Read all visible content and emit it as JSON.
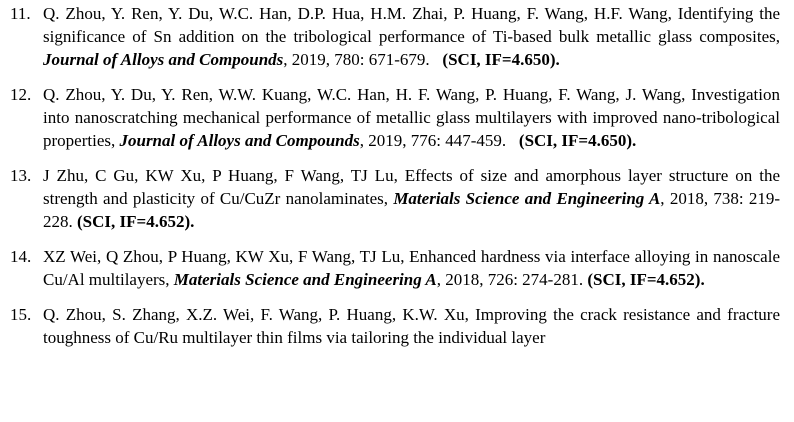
{
  "page": {
    "background_color": "#ffffff",
    "text_color": "#000000"
  },
  "references": [
    {
      "number": "11.",
      "segments": [
        {
          "style": "normal",
          "text": "Q. Zhou, Y. Ren, Y. Du, W.C. Han, D.P. Hua, H.M. Zhai, P. Huang, F. Wang, H.F. Wang, Identifying the significance of Sn addition on the tribological performance of Ti-based bulk metallic glass composites, "
        },
        {
          "style": "bold-italic",
          "text": "Journal of Alloys and Compounds"
        },
        {
          "style": "normal",
          "text": ", 2019, 780: 671-679.   "
        },
        {
          "style": "bold",
          "text": "(SCI, IF=4.650)."
        }
      ]
    },
    {
      "number": "12.",
      "segments": [
        {
          "style": "normal",
          "text": "Q. Zhou, Y. Du, Y. Ren, W.W. Kuang, W.C. Han, H. F. Wang, P. Huang, F. Wang, J. Wang, Investigation into nanoscratching mechanical performance of metallic glass multilayers with improved nano-tribological properties, "
        },
        {
          "style": "bold-italic",
          "text": "Journal of Alloys and Compounds"
        },
        {
          "style": "normal",
          "text": ", 2019, 776: 447-459.   "
        },
        {
          "style": "bold",
          "text": "(SCI, IF=4.650)."
        }
      ]
    },
    {
      "number": "13.",
      "segments": [
        {
          "style": "normal",
          "text": "J Zhu, C Gu, KW Xu, P Huang, F Wang, TJ Lu, Effects of size and amorphous layer structure on the strength and plasticity of Cu/CuZr nanolaminates, "
        },
        {
          "style": "bold-italic",
          "text": "Materials Science and Engineering A"
        },
        {
          "style": "normal",
          "text": ", 2018, 738: 219-228. "
        },
        {
          "style": "bold",
          "text": "(SCI, IF=4.652)."
        }
      ]
    },
    {
      "number": "14.",
      "segments": [
        {
          "style": "normal",
          "text": "XZ Wei, Q Zhou, P Huang, KW Xu, F Wang, TJ Lu, Enhanced hardness via interface alloying in nanoscale Cu/Al multilayers, "
        },
        {
          "style": "bold-italic",
          "text": "Materials Science and Engineering A"
        },
        {
          "style": "normal",
          "text": ", 2018, 726: 274-281. "
        },
        {
          "style": "bold",
          "text": "(SCI, IF=4.652)."
        }
      ]
    },
    {
      "number": "15.",
      "segments": [
        {
          "style": "normal",
          "text": "Q. Zhou, S. Zhang, X.Z. Wei, F. Wang, P. Huang, K.W. Xu, Improving the crack resistance and fracture toughness of Cu/Ru multilayer thin films via tailoring the individual layer"
        }
      ]
    }
  ]
}
